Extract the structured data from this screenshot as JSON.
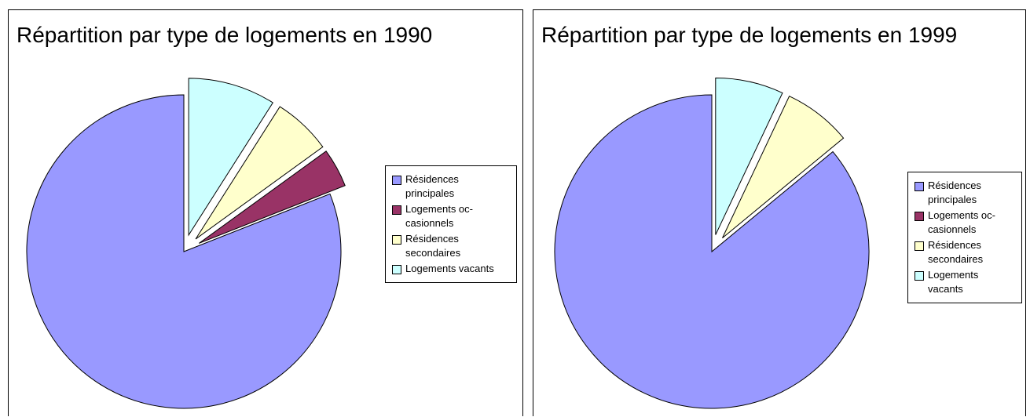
{
  "chart_data": [
    {
      "type": "pie",
      "title": "Répartition par type de logements en 1990",
      "categories": [
        "Résidences principales",
        "Logements oc-casionnels",
        "Résidences secondaires",
        "Logements vacants"
      ],
      "values": [
        81,
        4,
        6,
        9
      ],
      "colors": [
        "#9999ff",
        "#993366",
        "#ffffcc",
        "#ccffff"
      ]
    },
    {
      "type": "pie",
      "title": "Répartition par type de logements en 1999",
      "categories": [
        "Résidences principales",
        "Logements oc-casionnels",
        "Résidences secondaires",
        "Logements vacants"
      ],
      "values": [
        86,
        0,
        7,
        7
      ],
      "colors": [
        "#9999ff",
        "#993366",
        "#ffffcc",
        "#ccffff"
      ]
    }
  ]
}
